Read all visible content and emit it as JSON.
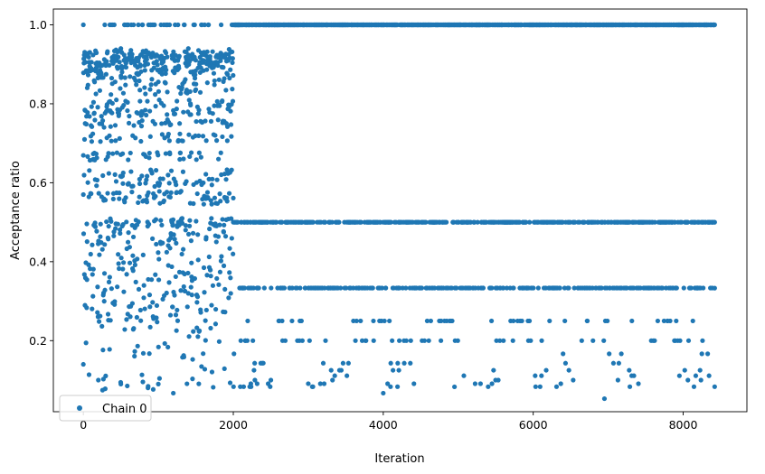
{
  "chart_data": {
    "type": "scatter",
    "xlabel": "Iteration",
    "ylabel": "Acceptance ratio",
    "xlim": [
      -400,
      8850
    ],
    "ylim": [
      0.02,
      1.04
    ],
    "xticks": [
      0,
      2000,
      4000,
      6000,
      8000
    ],
    "yticks": [
      0.2,
      0.4,
      0.6,
      0.8,
      1.0
    ],
    "xtick_labels": [
      "0",
      "2000",
      "4000",
      "6000",
      "8000"
    ],
    "ytick_labels": [
      "0.2",
      "0.4",
      "0.6",
      "0.8",
      "1.0"
    ],
    "grid": false,
    "legend": {
      "position": "lower-left",
      "entries": [
        "Chain 0"
      ]
    },
    "series": [
      {
        "name": "Chain 0",
        "color": "#1f77b4",
        "marker": "circle",
        "n_iterations": 8420,
        "description_of_distribution": "iterations 0-2000: dense spread of ratios 0.07-1.0; iterations 2000-8420: mostly 1.0, band at 0.5 and 0.333, sparse clusters 0.05-0.25",
        "sample_points": [
          {
            "x": 0,
            "y": 1.0
          },
          {
            "x": 0,
            "y": 0.57
          },
          {
            "x": 0,
            "y": 0.14
          },
          {
            "x": 200,
            "y": 0.1
          },
          {
            "x": 500,
            "y": 0.09
          },
          {
            "x": 1200,
            "y": 0.067
          },
          {
            "x": 500,
            "y": 0.94
          },
          {
            "x": 1000,
            "y": 0.09
          },
          {
            "x": 1400,
            "y": 0.94
          },
          {
            "x": 3000,
            "y": 0.091
          },
          {
            "x": 4000,
            "y": 0.067
          },
          {
            "x": 4950,
            "y": 0.083
          },
          {
            "x": 6950,
            "y": 0.053
          },
          {
            "x": 7950,
            "y": 0.111
          },
          {
            "x": 8420,
            "y": 1.0
          },
          {
            "x": 8420,
            "y": 0.5
          },
          {
            "x": 8420,
            "y": 0.333
          },
          {
            "x": 2100,
            "y": 0.2
          },
          {
            "x": 2400,
            "y": 0.143
          },
          {
            "x": 5950,
            "y": 0.25
          }
        ]
      }
    ]
  }
}
